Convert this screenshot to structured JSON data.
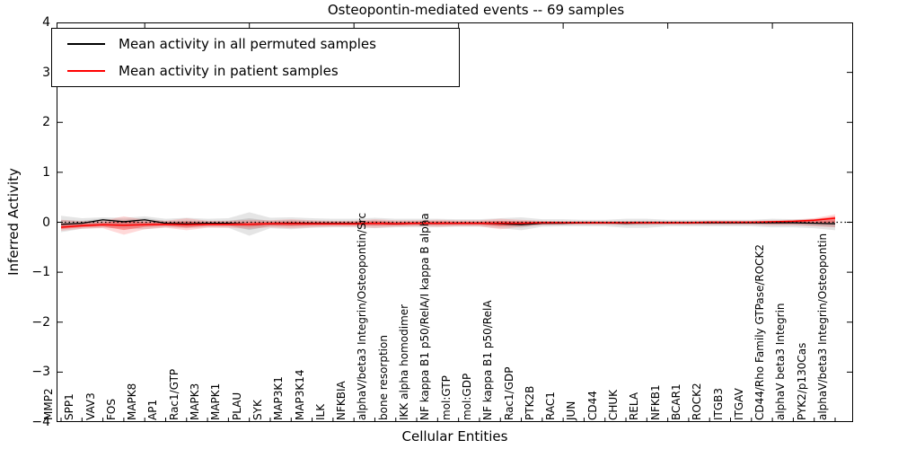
{
  "title": "Osteopontin-mediated events -- 69 samples",
  "legend": {
    "items": [
      {
        "label": "Mean activity in all permuted samples",
        "color": "#000000"
      },
      {
        "label": "Mean activity in patient samples",
        "color": "#ff0000"
      }
    ]
  },
  "axes": {
    "ylabel": "Inferred Activity",
    "xlabel": "Cellular Entities",
    "yticks": [
      {
        "label": "4",
        "value": 4
      },
      {
        "label": "3",
        "value": 3
      },
      {
        "label": "2",
        "value": 2
      },
      {
        "label": "1",
        "value": 1
      },
      {
        "label": "0",
        "value": 0
      },
      {
        "label": "−1",
        "value": -1
      },
      {
        "label": "−2",
        "value": -2
      },
      {
        "label": "−3",
        "value": -3
      },
      {
        "label": "−4",
        "value": -4
      }
    ]
  },
  "chart_data": {
    "type": "line",
    "title": "Osteopontin-mediated events -- 69 samples",
    "xlabel": "Cellular Entities",
    "ylabel": "Inferred Activity",
    "ylim": [
      -4,
      4
    ],
    "grid": false,
    "legend_position": "upper left",
    "zero_reference_line": 0,
    "categories": [
      "MMP2",
      "SPP1",
      "VAV3",
      "FOS",
      "MAPK8",
      "AP1",
      "Rac1/GTP",
      "MAPK3",
      "MAPK1",
      "PLAU",
      "SYK",
      "MAP3K1",
      "MAP3K14",
      "ILK",
      "NFKBIA",
      "alphaV/beta3 Integrin/Osteopontin/Src",
      "bone resorption",
      "IKK alpha homodimer",
      "NF kappa B1 p50/RelA/I kappa B alpha",
      "mol:GTP",
      "mol:GDP",
      "NF kappa B1 p50/RelA",
      "Rac1/GDP",
      "PTK2B",
      "RAC1",
      "JUN",
      "CD44",
      "CHUK",
      "RELA",
      "NFKB1",
      "BCAR1",
      "ROCK2",
      "ITGB3",
      "ITGAV",
      "CD44/Rho Family GTPase/ROCK2",
      "alphaV beta3 Integrin",
      "PYK2/p130Cas",
      "alphaV/beta3 Integrin/Osteopontin"
    ],
    "series": [
      {
        "name": "Mean activity in all permuted samples",
        "color": "#000000",
        "values": [
          -0.04,
          -0.02,
          0.05,
          0.01,
          0.05,
          -0.02,
          -0.03,
          -0.02,
          -0.02,
          -0.04,
          -0.03,
          -0.02,
          -0.02,
          -0.02,
          -0.02,
          -0.02,
          -0.03,
          -0.02,
          -0.02,
          -0.02,
          -0.02,
          -0.03,
          -0.05,
          -0.02,
          -0.02,
          -0.01,
          -0.01,
          -0.02,
          -0.01,
          -0.01,
          -0.01,
          -0.01,
          -0.01,
          -0.01,
          -0.01,
          -0.01,
          -0.02,
          -0.03
        ]
      },
      {
        "name": "Mean activity in patient samples",
        "color": "#ff0000",
        "values": [
          -0.1,
          -0.07,
          -0.05,
          -0.06,
          -0.05,
          -0.04,
          -0.05,
          -0.04,
          -0.04,
          -0.04,
          -0.03,
          -0.03,
          -0.03,
          -0.03,
          -0.03,
          -0.02,
          -0.03,
          -0.02,
          -0.02,
          -0.02,
          -0.02,
          -0.02,
          -0.02,
          -0.01,
          -0.01,
          -0.01,
          -0.01,
          -0.01,
          -0.01,
          -0.01,
          -0.01,
          0.0,
          0.0,
          0.0,
          0.01,
          0.02,
          0.04,
          0.08
        ]
      }
    ],
    "bands": [
      {
        "name": "permuted samples range",
        "color": "#8a8a8a",
        "upper": [
          0.13,
          0.08,
          0.1,
          0.09,
          0.12,
          0.07,
          0.09,
          0.07,
          0.08,
          0.2,
          0.09,
          0.1,
          0.08,
          0.07,
          0.07,
          0.09,
          0.07,
          0.07,
          0.07,
          0.06,
          0.06,
          0.08,
          0.1,
          0.06,
          0.06,
          0.05,
          0.05,
          0.07,
          0.07,
          0.05,
          0.05,
          0.05,
          0.05,
          0.05,
          0.07,
          0.06,
          0.07,
          0.09
        ],
        "lower": [
          -0.2,
          -0.13,
          -0.11,
          -0.12,
          -0.14,
          -0.1,
          -0.12,
          -0.1,
          -0.11,
          -0.27,
          -0.12,
          -0.14,
          -0.11,
          -0.1,
          -0.1,
          -0.12,
          -0.1,
          -0.1,
          -0.1,
          -0.09,
          -0.09,
          -0.12,
          -0.16,
          -0.09,
          -0.08,
          -0.08,
          -0.08,
          -0.11,
          -0.11,
          -0.08,
          -0.08,
          -0.08,
          -0.08,
          -0.08,
          -0.1,
          -0.1,
          -0.12,
          -0.16
        ]
      },
      {
        "name": "patient samples range",
        "color": "#ff2020",
        "upper": [
          0.05,
          0.02,
          0.03,
          0.12,
          0.05,
          0.03,
          0.08,
          0.03,
          0.03,
          0.05,
          0.04,
          0.06,
          0.04,
          0.03,
          0.03,
          0.06,
          0.04,
          0.04,
          0.05,
          0.04,
          0.04,
          0.07,
          0.05,
          0.03,
          0.02,
          0.02,
          0.02,
          0.02,
          0.02,
          0.02,
          0.02,
          0.03,
          0.03,
          0.03,
          0.04,
          0.05,
          0.08,
          0.16
        ],
        "lower": [
          -0.17,
          -0.13,
          -0.12,
          -0.25,
          -0.14,
          -0.11,
          -0.16,
          -0.11,
          -0.11,
          -0.13,
          -0.1,
          -0.12,
          -0.1,
          -0.09,
          -0.09,
          -0.11,
          -0.09,
          -0.08,
          -0.09,
          -0.08,
          -0.08,
          -0.14,
          -0.09,
          -0.06,
          -0.05,
          -0.05,
          -0.05,
          -0.05,
          -0.05,
          -0.05,
          -0.05,
          -0.05,
          -0.05,
          -0.05,
          -0.06,
          -0.06,
          -0.08,
          -0.1
        ]
      }
    ]
  }
}
